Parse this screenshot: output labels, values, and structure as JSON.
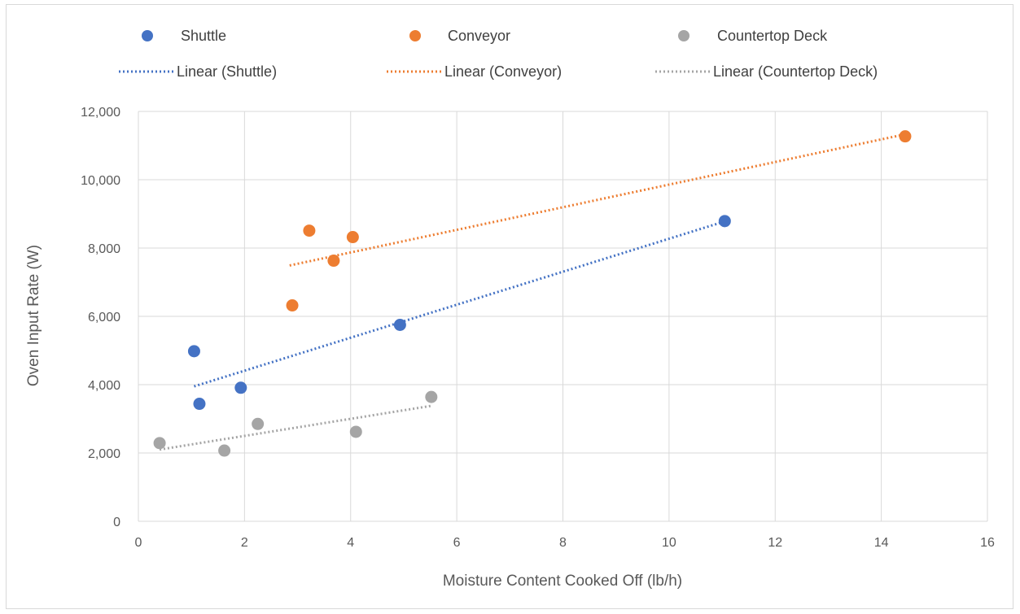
{
  "chart_data": {
    "type": "scatter",
    "xlabel": "Moisture Content Cooked Off (lb/h)",
    "ylabel": "Oven Input Rate (W)",
    "xlim": [
      0,
      16
    ],
    "ylim": [
      0,
      12000
    ],
    "x_ticks": [
      0,
      2,
      4,
      6,
      8,
      10,
      12,
      14,
      16
    ],
    "y_ticks": [
      0,
      2000,
      4000,
      6000,
      8000,
      10000,
      12000
    ],
    "x_tick_labels": [
      "0",
      "2",
      "4",
      "6",
      "8",
      "10",
      "12",
      "14",
      "16"
    ],
    "y_tick_labels": [
      "0",
      "2,000",
      "4,000",
      "6,000",
      "8,000",
      "10,000",
      "12,000"
    ],
    "grid": true,
    "legend_position": "top",
    "series": [
      {
        "name": "Shuttle",
        "color": "#4472c4",
        "points": [
          [
            1.05,
            4980
          ],
          [
            1.15,
            3440
          ],
          [
            1.93,
            3910
          ],
          [
            4.93,
            5750
          ],
          [
            11.05,
            8790
          ]
        ],
        "trendline": {
          "name": "Linear (Shuttle)",
          "from": [
            1.05,
            3950
          ],
          "to": [
            11.05,
            8780
          ]
        }
      },
      {
        "name": "Conveyor",
        "color": "#ed7d31",
        "points": [
          [
            2.9,
            6320
          ],
          [
            3.22,
            8510
          ],
          [
            3.68,
            7630
          ],
          [
            4.04,
            8320
          ],
          [
            14.45,
            11270
          ]
        ],
        "trendline": {
          "name": "Linear (Conveyor)",
          "from": [
            2.85,
            7490
          ],
          "to": [
            14.45,
            11330
          ]
        }
      },
      {
        "name": "Countertop Deck",
        "color": "#a5a5a5",
        "points": [
          [
            0.4,
            2290
          ],
          [
            1.62,
            2070
          ],
          [
            2.25,
            2850
          ],
          [
            4.1,
            2620
          ],
          [
            5.52,
            3640
          ]
        ],
        "trendline": {
          "name": "Linear (Countertop Deck)",
          "from": [
            0.4,
            2100
          ],
          "to": [
            5.52,
            3380
          ]
        }
      }
    ]
  }
}
